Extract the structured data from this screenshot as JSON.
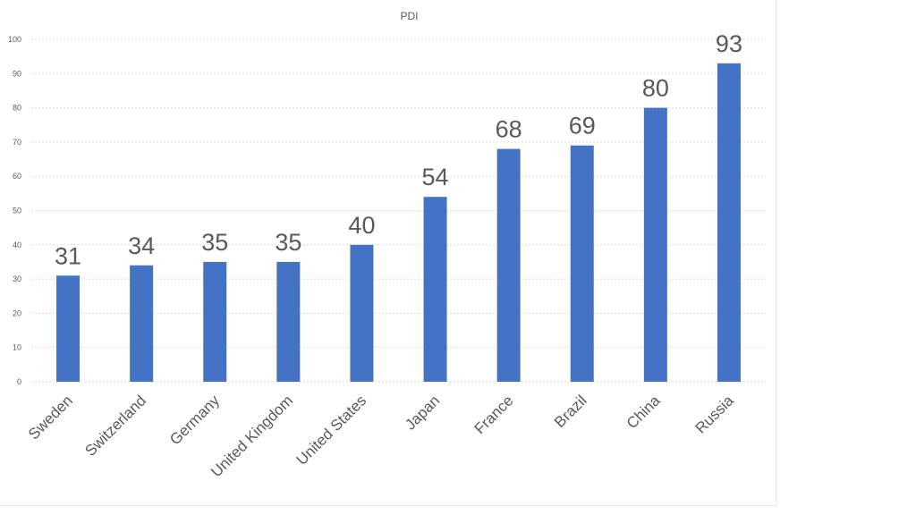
{
  "chart_data": {
    "type": "bar",
    "title": "PDI",
    "xlabel": "",
    "ylabel": "",
    "categories": [
      "Sweden",
      "Switzerland",
      "Germany",
      "United Kingdom",
      "United States",
      "Japan",
      "France",
      "Brazil",
      "China",
      "Russia"
    ],
    "values": [
      31,
      34,
      35,
      35,
      40,
      54,
      68,
      69,
      80,
      93
    ],
    "ylim": [
      0,
      100
    ],
    "yticks": [
      "0",
      "10",
      "20",
      "30",
      "40",
      "50",
      "60",
      "70",
      "80",
      "90",
      "100"
    ],
    "grid": true,
    "legend": "none",
    "bar_color": "#4472c4"
  }
}
